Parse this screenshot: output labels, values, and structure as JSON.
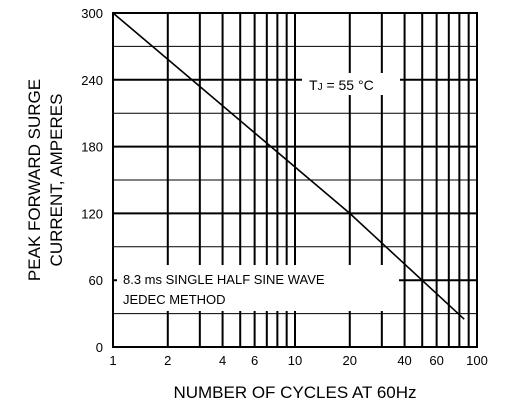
{
  "chart_data": {
    "type": "line",
    "xscale": "log",
    "xlim": [
      1,
      100
    ],
    "ylim": [
      0,
      300
    ],
    "xticks": [
      1,
      2,
      4,
      6,
      10,
      20,
      40,
      60,
      100
    ],
    "xtick_labels": [
      "1",
      "2",
      "4",
      "6",
      "10",
      "20",
      "40",
      "60",
      "100"
    ],
    "yticks": [
      0,
      60,
      120,
      180,
      240,
      300
    ],
    "ytick_labels": [
      "0",
      "60",
      "120",
      "180",
      "240",
      "300"
    ],
    "xlabel": "NUMBER OF CYCLES AT 60Hz",
    "ylabel_lines": [
      "PEAK FORWARD SURGE",
      "CURRENT, AMPERES"
    ],
    "grid": true,
    "series": [
      {
        "x": [
          1,
          20,
          85
        ],
        "y": [
          300,
          120,
          25
        ]
      }
    ],
    "annotations": {
      "tj_prefix": "T",
      "tj_sub": "J",
      "tj_rest": " = 55 °C",
      "wave_line1": "8.3 ms SINGLE HALF SINE WAVE",
      "wave_line2": "JEDEC METHOD"
    }
  }
}
